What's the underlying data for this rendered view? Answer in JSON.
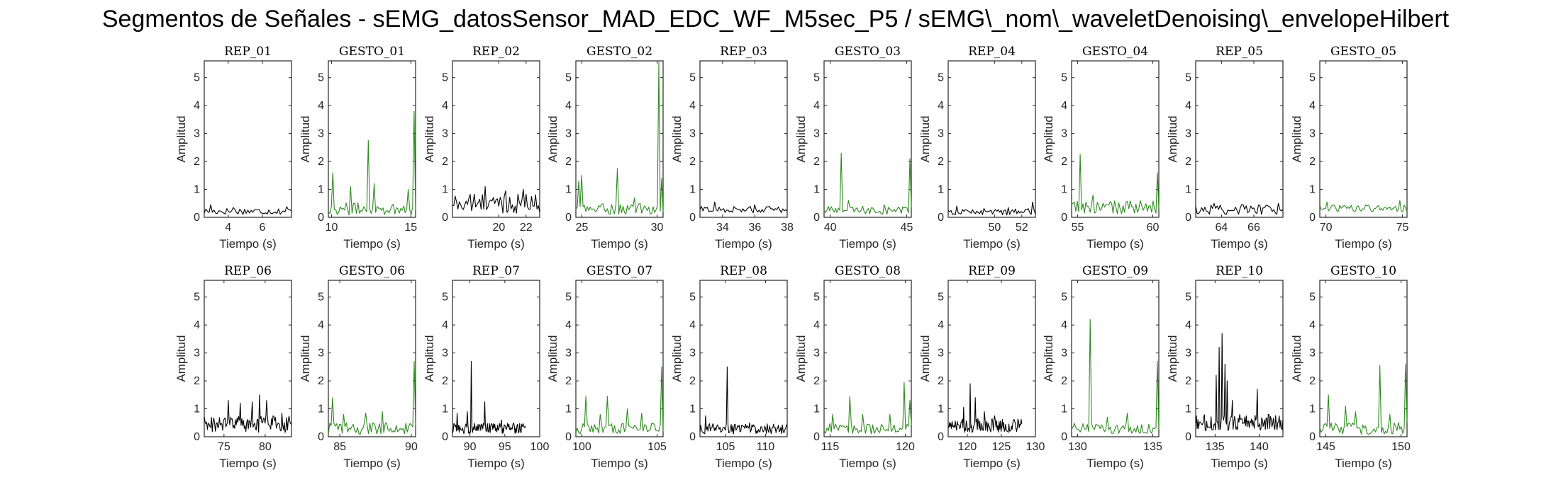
{
  "title": "Segmentos de Señales - sEMG_datosSensor_MAD_EDC_WF_M5sec_P5 / sEMG\\_nom\\_waveletDenoising\\_envelopeHilbert",
  "colors": {
    "rep": "#000000",
    "gesto": "#2e8b1f",
    "axis": "#262626"
  },
  "chart_data": [
    {
      "type": "line",
      "title": "REP_01",
      "color": "rep",
      "xlabel": "Tiempo (s)",
      "ylabel": "Amplitud",
      "xlim": [
        2.6,
        7.7
      ],
      "ylim": [
        0,
        5.6
      ],
      "xticks": [
        4,
        6
      ],
      "yticks": [
        0,
        1,
        2,
        3,
        4,
        5
      ],
      "x_start": 2.6,
      "x_end": 7.7,
      "n": 55,
      "base": 0.22,
      "noise": 0.12,
      "peaks": [
        [
          3.0,
          0.45
        ],
        [
          4.3,
          0.35
        ],
        [
          7.4,
          0.38
        ]
      ]
    },
    {
      "type": "line",
      "title": "GESTO_01",
      "color": "gesto",
      "xlabel": "Tiempo (s)",
      "ylabel": "Amplitud",
      "xlim": [
        9.8,
        15.3
      ],
      "ylim": [
        0,
        5.6
      ],
      "xticks": [
        10,
        15
      ],
      "yticks": [
        0,
        1,
        2,
        3,
        4,
        5
      ],
      "x_start": 9.8,
      "x_end": 15.3,
      "n": 60,
      "base": 0.3,
      "noise": 0.22,
      "peaks": [
        [
          10.1,
          1.6
        ],
        [
          11.2,
          1.1
        ],
        [
          12.3,
          2.75
        ],
        [
          12.7,
          1.2
        ],
        [
          14.8,
          1.0
        ],
        [
          15.25,
          3.8
        ]
      ]
    },
    {
      "type": "line",
      "title": "REP_02",
      "color": "rep",
      "xlabel": "Tiempo (s)",
      "ylabel": "Amplitud",
      "xlim": [
        16.6,
        23.0
      ],
      "ylim": [
        0,
        5.6
      ],
      "xticks": [
        20,
        22
      ],
      "yticks": [
        0,
        1,
        2,
        3,
        4,
        5
      ],
      "x_start": 16.6,
      "x_end": 23.0,
      "n": 65,
      "base": 0.5,
      "noise": 0.35,
      "peaks": [
        [
          19.0,
          1.1
        ],
        [
          20.5,
          0.95
        ],
        [
          21.8,
          1.0
        ]
      ]
    },
    {
      "type": "line",
      "title": "GESTO_02",
      "color": "gesto",
      "xlabel": "Tiempo (s)",
      "ylabel": "Amplitud",
      "xlim": [
        24.6,
        30.4
      ],
      "ylim": [
        0,
        5.6
      ],
      "xticks": [
        25,
        30
      ],
      "yticks": [
        0,
        1,
        2,
        3,
        4,
        5
      ],
      "x_start": 24.6,
      "x_end": 30.4,
      "n": 62,
      "base": 0.3,
      "noise": 0.2,
      "peaks": [
        [
          24.8,
          1.3
        ],
        [
          25.0,
          1.5
        ],
        [
          27.4,
          1.75
        ],
        [
          28.5,
          0.7
        ],
        [
          30.1,
          5.55
        ],
        [
          30.35,
          1.4
        ]
      ]
    },
    {
      "type": "line",
      "title": "REP_03",
      "color": "rep",
      "xlabel": "Tiempo (s)",
      "ylabel": "Amplitud",
      "xlim": [
        32.6,
        38.0
      ],
      "ylim": [
        0,
        5.6
      ],
      "xticks": [
        34,
        36,
        38
      ],
      "yticks": [
        0,
        1,
        2,
        3,
        4,
        5
      ],
      "x_start": 32.6,
      "x_end": 38.0,
      "n": 60,
      "base": 0.28,
      "noise": 0.12,
      "peaks": [
        [
          33.5,
          0.55
        ],
        [
          36.0,
          0.45
        ]
      ]
    },
    {
      "type": "line",
      "title": "GESTO_03",
      "color": "gesto",
      "xlabel": "Tiempo (s)",
      "ylabel": "Amplitud",
      "xlim": [
        39.6,
        45.3
      ],
      "ylim": [
        0,
        5.6
      ],
      "xticks": [
        40,
        45
      ],
      "yticks": [
        0,
        1,
        2,
        3,
        4,
        5
      ],
      "x_start": 39.6,
      "x_end": 45.3,
      "n": 62,
      "base": 0.25,
      "noise": 0.15,
      "peaks": [
        [
          40.7,
          2.3
        ],
        [
          41.2,
          0.6
        ],
        [
          43.5,
          0.45
        ],
        [
          45.25,
          2.1
        ]
      ]
    },
    {
      "type": "line",
      "title": "REP_04",
      "color": "rep",
      "xlabel": "Tiempo (s)",
      "ylabel": "Amplitud",
      "xlim": [
        46.6,
        53.0
      ],
      "ylim": [
        0,
        5.6
      ],
      "xticks": [
        50,
        52
      ],
      "yticks": [
        0,
        1,
        2,
        3,
        4,
        5
      ],
      "x_start": 46.6,
      "x_end": 53.0,
      "n": 62,
      "base": 0.2,
      "noise": 0.12,
      "peaks": [
        [
          47.2,
          0.4
        ],
        [
          51.0,
          0.35
        ],
        [
          52.8,
          0.55
        ]
      ]
    },
    {
      "type": "line",
      "title": "GESTO_04",
      "color": "gesto",
      "xlabel": "Tiempo (s)",
      "ylabel": "Amplitud",
      "xlim": [
        54.6,
        60.4
      ],
      "ylim": [
        0,
        5.6
      ],
      "xticks": [
        55,
        60
      ],
      "yticks": [
        0,
        1,
        2,
        3,
        4,
        5
      ],
      "x_start": 54.6,
      "x_end": 60.4,
      "n": 62,
      "base": 0.35,
      "noise": 0.25,
      "peaks": [
        [
          55.2,
          2.25
        ],
        [
          56.0,
          0.8
        ],
        [
          57.5,
          0.75
        ],
        [
          60.3,
          1.6
        ]
      ]
    },
    {
      "type": "line",
      "title": "REP_05",
      "color": "rep",
      "xlabel": "Tiempo (s)",
      "ylabel": "Amplitud",
      "xlim": [
        62.4,
        67.8
      ],
      "ylim": [
        0,
        5.6
      ],
      "xticks": [
        64,
        66
      ],
      "yticks": [
        0,
        1,
        2,
        3,
        4,
        5
      ],
      "x_start": 62.4,
      "x_end": 67.8,
      "n": 58,
      "base": 0.28,
      "noise": 0.18,
      "peaks": [
        [
          63.5,
          0.5
        ],
        [
          65.2,
          0.45
        ],
        [
          67.5,
          0.5
        ]
      ]
    },
    {
      "type": "line",
      "title": "GESTO_05",
      "color": "gesto",
      "xlabel": "Tiempo (s)",
      "ylabel": "Amplitud",
      "xlim": [
        69.6,
        75.3
      ],
      "ylim": [
        0,
        5.6
      ],
      "xticks": [
        70,
        75
      ],
      "yticks": [
        0,
        1,
        2,
        3,
        4,
        5
      ],
      "x_start": 69.6,
      "x_end": 75.3,
      "n": 62,
      "base": 0.32,
      "noise": 0.12,
      "peaks": [
        [
          70.1,
          0.55
        ],
        [
          74.8,
          0.6
        ]
      ]
    },
    {
      "type": "line",
      "title": "REP_06",
      "color": "rep",
      "xlabel": "Tiempo (s)",
      "ylabel": "Amplitud",
      "xlim": [
        72.6,
        83.2
      ],
      "ylim": [
        0,
        5.6
      ],
      "xticks": [
        75,
        80
      ],
      "yticks": [
        0,
        1,
        2,
        3,
        4,
        5
      ],
      "x_start": 72.6,
      "x_end": 83.2,
      "n": 110,
      "base": 0.45,
      "noise": 0.3,
      "peaks": [
        [
          75.5,
          1.3
        ],
        [
          77.0,
          1.2
        ],
        [
          78.4,
          1.25
        ],
        [
          79.3,
          1.5
        ],
        [
          80.2,
          1.3
        ],
        [
          82.0,
          0.85
        ]
      ]
    },
    {
      "type": "line",
      "title": "GESTO_06",
      "color": "gesto",
      "xlabel": "Tiempo (s)",
      "ylabel": "Amplitud",
      "xlim": [
        84.2,
        90.3
      ],
      "ylim": [
        0,
        5.6
      ],
      "xticks": [
        85,
        90
      ],
      "yticks": [
        0,
        1,
        2,
        3,
        4,
        5
      ],
      "x_start": 84.2,
      "x_end": 90.3,
      "n": 64,
      "base": 0.3,
      "noise": 0.22,
      "peaks": [
        [
          84.5,
          1.4
        ],
        [
          85.3,
          0.8
        ],
        [
          86.8,
          0.85
        ],
        [
          88.0,
          0.9
        ],
        [
          90.25,
          2.7
        ]
      ]
    },
    {
      "type": "line",
      "title": "REP_07",
      "color": "rep",
      "xlabel": "Tiempo (s)",
      "ylabel": "Amplitud",
      "xlim": [
        87.5,
        100.0
      ],
      "ylim": [
        0,
        5.6
      ],
      "xticks": [
        90,
        95,
        100
      ],
      "yticks": [
        0,
        1,
        2,
        3,
        4,
        5
      ],
      "x_start": 87.5,
      "x_end": 98.0,
      "n": 110,
      "base": 0.3,
      "noise": 0.2,
      "peaks": [
        [
          88.2,
          0.85
        ],
        [
          89.6,
          0.9
        ],
        [
          90.2,
          2.7
        ],
        [
          92.1,
          1.25
        ],
        [
          94.5,
          0.6
        ]
      ]
    },
    {
      "type": "line",
      "title": "GESTO_07",
      "color": "gesto",
      "xlabel": "Tiempo (s)",
      "ylabel": "Amplitud",
      "xlim": [
        99.6,
        105.4
      ],
      "ylim": [
        0,
        5.6
      ],
      "xticks": [
        100,
        105
      ],
      "yticks": [
        0,
        1,
        2,
        3,
        4,
        5
      ],
      "x_start": 99.6,
      "x_end": 105.4,
      "n": 62,
      "base": 0.3,
      "noise": 0.2,
      "peaks": [
        [
          100.3,
          1.45
        ],
        [
          101.2,
          0.8
        ],
        [
          101.7,
          1.45
        ],
        [
          103.0,
          1.0
        ],
        [
          104.0,
          0.85
        ],
        [
          105.35,
          2.5
        ]
      ]
    },
    {
      "type": "line",
      "title": "REP_08",
      "color": "rep",
      "xlabel": "Tiempo (s)",
      "ylabel": "Amplitud",
      "xlim": [
        101.8,
        112.7
      ],
      "ylim": [
        0,
        5.6
      ],
      "xticks": [
        105,
        110
      ],
      "yticks": [
        0,
        1,
        2,
        3,
        4,
        5
      ],
      "x_start": 101.8,
      "x_end": 112.7,
      "n": 110,
      "base": 0.3,
      "noise": 0.2,
      "peaks": [
        [
          102.5,
          0.75
        ],
        [
          105.2,
          2.5
        ],
        [
          108.0,
          0.5
        ],
        [
          111.0,
          0.45
        ]
      ]
    },
    {
      "type": "line",
      "title": "GESTO_08",
      "color": "gesto",
      "xlabel": "Tiempo (s)",
      "ylabel": "Amplitud",
      "xlim": [
        114.6,
        120.4
      ],
      "ylim": [
        0,
        5.6
      ],
      "xticks": [
        115,
        120
      ],
      "yticks": [
        0,
        1,
        2,
        3,
        4,
        5
      ],
      "x_start": 114.6,
      "x_end": 120.4,
      "n": 62,
      "base": 0.3,
      "noise": 0.2,
      "peaks": [
        [
          115.2,
          0.8
        ],
        [
          116.3,
          1.45
        ],
        [
          117.2,
          0.8
        ],
        [
          119.0,
          0.8
        ],
        [
          119.9,
          1.95
        ],
        [
          120.35,
          1.3
        ]
      ]
    },
    {
      "type": "line",
      "title": "REP_09",
      "color": "rep",
      "xlabel": "Tiempo (s)",
      "ylabel": "Amplitud",
      "xlim": [
        117.2,
        130.0
      ],
      "ylim": [
        0,
        5.6
      ],
      "xticks": [
        120,
        125,
        130
      ],
      "yticks": [
        0,
        1,
        2,
        3,
        4,
        5
      ],
      "x_start": 117.2,
      "x_end": 128.0,
      "n": 115,
      "base": 0.4,
      "noise": 0.25,
      "peaks": [
        [
          119.5,
          1.05
        ],
        [
          120.4,
          1.9
        ],
        [
          121.2,
          1.4
        ],
        [
          122.5,
          0.9
        ],
        [
          124.0,
          0.75
        ]
      ]
    },
    {
      "type": "line",
      "title": "GESTO_09",
      "color": "gesto",
      "xlabel": "Tiempo (s)",
      "ylabel": "Amplitud",
      "xlim": [
        129.6,
        135.4
      ],
      "ylim": [
        0,
        5.6
      ],
      "xticks": [
        130,
        135
      ],
      "yticks": [
        0,
        1,
        2,
        3,
        4,
        5
      ],
      "x_start": 129.6,
      "x_end": 135.4,
      "n": 62,
      "base": 0.3,
      "noise": 0.2,
      "peaks": [
        [
          130.8,
          4.2
        ],
        [
          132.0,
          0.7
        ],
        [
          133.3,
          0.85
        ],
        [
          135.3,
          2.7
        ]
      ]
    },
    {
      "type": "line",
      "title": "REP_10",
      "color": "rep",
      "xlabel": "Tiempo (s)",
      "ylabel": "Amplitud",
      "xlim": [
        132.8,
        142.7
      ],
      "ylim": [
        0,
        5.6
      ],
      "xticks": [
        135,
        140
      ],
      "yticks": [
        0,
        1,
        2,
        3,
        4,
        5
      ],
      "x_start": 132.8,
      "x_end": 142.7,
      "n": 120,
      "base": 0.5,
      "noise": 0.3,
      "peaks": [
        [
          135.1,
          2.2
        ],
        [
          135.5,
          3.2
        ],
        [
          135.8,
          3.7
        ],
        [
          136.1,
          2.6
        ],
        [
          136.4,
          2.0
        ],
        [
          137.0,
          1.3
        ],
        [
          139.8,
          1.7
        ],
        [
          141.0,
          0.8
        ]
      ]
    },
    {
      "type": "line",
      "title": "GESTO_10",
      "color": "gesto",
      "xlabel": "Tiempo (s)",
      "ylabel": "Amplitud",
      "xlim": [
        144.6,
        150.4
      ],
      "ylim": [
        0,
        5.6
      ],
      "xticks": [
        145,
        150
      ],
      "yticks": [
        0,
        1,
        2,
        3,
        4,
        5
      ],
      "x_start": 144.6,
      "x_end": 150.4,
      "n": 62,
      "base": 0.3,
      "noise": 0.22,
      "peaks": [
        [
          145.2,
          1.5
        ],
        [
          146.3,
          1.1
        ],
        [
          147.0,
          0.9
        ],
        [
          148.6,
          2.55
        ],
        [
          149.3,
          0.8
        ],
        [
          150.35,
          2.6
        ]
      ]
    }
  ]
}
